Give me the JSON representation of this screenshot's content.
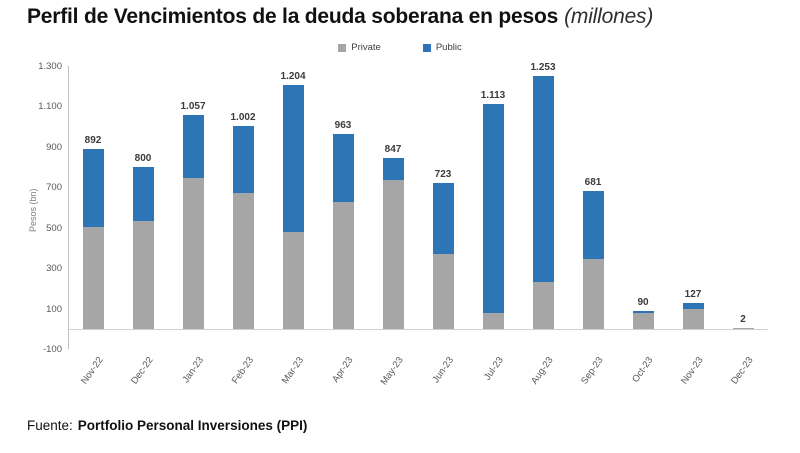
{
  "title": {
    "main": "Perfil de Vencimientos de la deuda soberana en pesos",
    "suffix": "(millones)"
  },
  "footer": {
    "prefix": "Fuente:",
    "source": "Portfolio Personal Inversiones (PPI)"
  },
  "chart_data": {
    "type": "bar",
    "stacked": true,
    "title": "Perfil de Vencimientos de la deuda soberana en pesos (millones)",
    "xlabel": "",
    "ylabel": "Pesos (bn)",
    "categories": [
      "Nov-22",
      "Dec-22",
      "Jan-23",
      "Feb-23",
      "Mar-23",
      "Apr-23",
      "May-23",
      "Jun-23",
      "Jul-23",
      "Aug-23",
      "Sep-23",
      "Oct-23",
      "Nov-23",
      "Dec-23"
    ],
    "series": [
      {
        "name": "Private",
        "color": "#a6a6a6",
        "values": [
          505,
          535,
          745,
          670,
          480,
          625,
          735,
          370,
          80,
          230,
          345,
          80,
          100,
          2
        ]
      },
      {
        "name": "Public",
        "color": "#2e75b6",
        "values": [
          387,
          265,
          312,
          332,
          724,
          338,
          112,
          353,
          1033,
          1023,
          336,
          10,
          27,
          0
        ]
      }
    ],
    "totals": [
      892,
      800,
      1057,
      1002,
      1204,
      963,
      847,
      723,
      1113,
      1253,
      681,
      90,
      127,
      2
    ],
    "total_labels": [
      "892",
      "800",
      "1.057",
      "1.002",
      "1.204",
      "963",
      "847",
      "723",
      "1.113",
      "1.253",
      "681",
      "90",
      "127",
      "2"
    ],
    "ylim": [
      -100,
      1300
    ],
    "yticks": [
      1300,
      1100,
      900,
      700,
      500,
      300,
      100,
      -100
    ],
    "ytick_labels": [
      "1.300",
      "1.100",
      "900",
      "700",
      "500",
      "300",
      "100",
      "-100"
    ],
    "grid": false,
    "legend_position": "top-center"
  },
  "colors": {
    "private": "#a6a6a6",
    "public": "#2e75b6",
    "axis_text": "#595959",
    "label_text": "#3b3b3b",
    "axis_line": "#bfbfbf"
  }
}
